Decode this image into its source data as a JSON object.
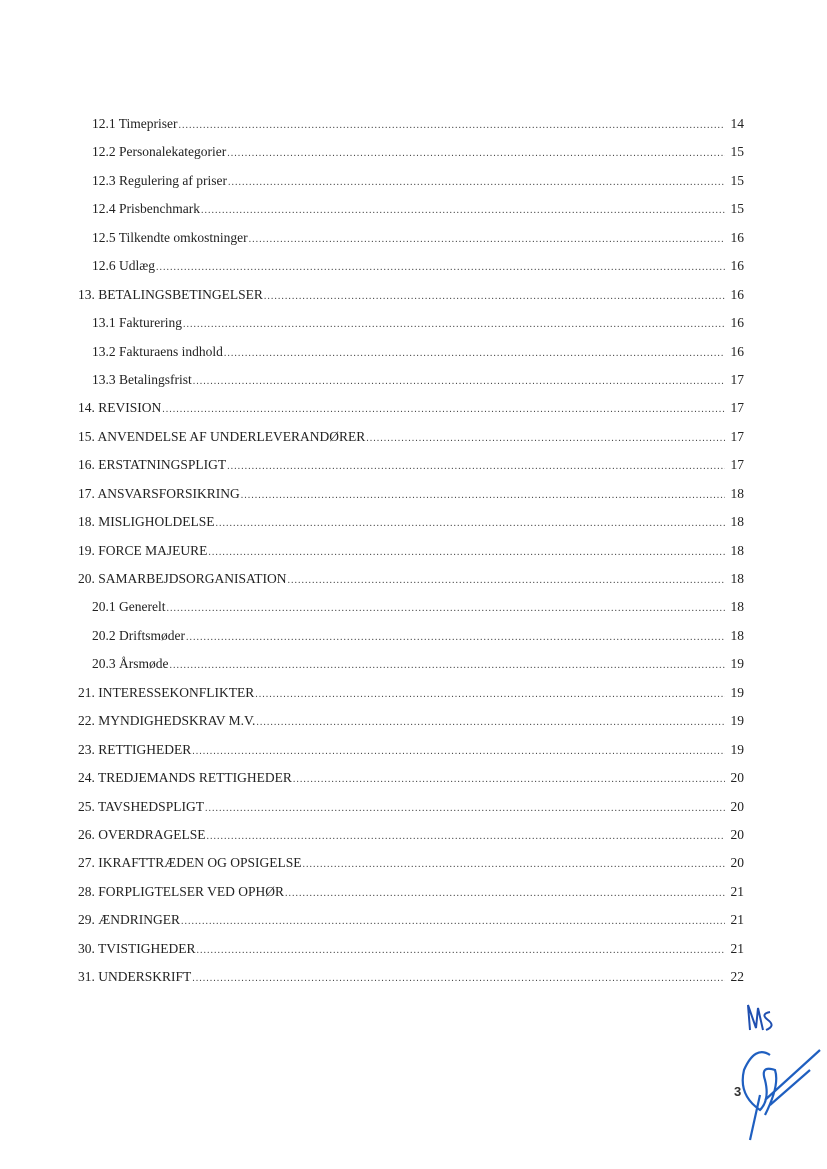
{
  "toc": [
    {
      "label": "12.1 Timepriser",
      "page": "14",
      "level": 2
    },
    {
      "label": "12.2 Personalekategorier",
      "page": "15",
      "level": 2
    },
    {
      "label": "12.3 Regulering af priser",
      "page": "15",
      "level": 2
    },
    {
      "label": "12.4 Prisbenchmark",
      "page": "15",
      "level": 2
    },
    {
      "label": "12.5 Tilkendte omkostninger",
      "page": "16",
      "level": 2
    },
    {
      "label": "12.6 Udlæg",
      "page": "16",
      "level": 2
    },
    {
      "label": "13. BETALINGSBETINGELSER",
      "page": "16",
      "level": 1
    },
    {
      "label": "13.1 Fakturering",
      "page": "16",
      "level": 2
    },
    {
      "label": "13.2 Fakturaens indhold",
      "page": "16",
      "level": 2
    },
    {
      "label": "13.3 Betalingsfrist",
      "page": "17",
      "level": 2
    },
    {
      "label": "14. REVISION",
      "page": "17",
      "level": 1
    },
    {
      "label": "15. ANVENDELSE AF UNDERLEVERANDØRER",
      "page": "17",
      "level": 1
    },
    {
      "label": "16. ERSTATNINGSPLIGT",
      "page": "17",
      "level": 1
    },
    {
      "label": "17. ANSVARSFORSIKRING",
      "page": "18",
      "level": 1
    },
    {
      "label": "18. MISLIGHOLDELSE",
      "page": "18",
      "level": 1
    },
    {
      "label": "19. FORCE MAJEURE",
      "page": "18",
      "level": 1
    },
    {
      "label": "20. SAMARBEJDSORGANISATION",
      "page": "18",
      "level": 1
    },
    {
      "label": "20.1 Generelt",
      "page": "18",
      "level": 2
    },
    {
      "label": "20.2 Driftsmøder",
      "page": "18",
      "level": 2
    },
    {
      "label": "20.3 Årsmøde",
      "page": "19",
      "level": 2
    },
    {
      "label": "21. INTERESSEKONFLIKTER",
      "page": "19",
      "level": 1
    },
    {
      "label": "22. MYNDIGHEDSKRAV M.V.",
      "page": "19",
      "level": 1
    },
    {
      "label": "23. RETTIGHEDER",
      "page": "19",
      "level": 1
    },
    {
      "label": "24. TREDJEMANDS RETTIGHEDER",
      "page": "20",
      "level": 1
    },
    {
      "label": "25. TAVSHEDSPLIGT",
      "page": "20",
      "level": 1
    },
    {
      "label": "26. OVERDRAGELSE",
      "page": "20",
      "level": 1
    },
    {
      "label": "27. IKRAFTTRÆDEN OG OPSIGELSE",
      "page": "20",
      "level": 1
    },
    {
      "label": "28. FORPLIGTELSER VED OPHØR",
      "page": "21",
      "level": 1
    },
    {
      "label": "29. ÆNDRINGER",
      "page": "21",
      "level": 1
    },
    {
      "label": "30. TVISTIGHEDER",
      "page": "21",
      "level": 1
    },
    {
      "label": "31. UNDERSKRIFT",
      "page": "22",
      "level": 1
    }
  ],
  "page_number": "3",
  "signature": {
    "initials": "MS",
    "ink_color": "#1f4fb0"
  }
}
